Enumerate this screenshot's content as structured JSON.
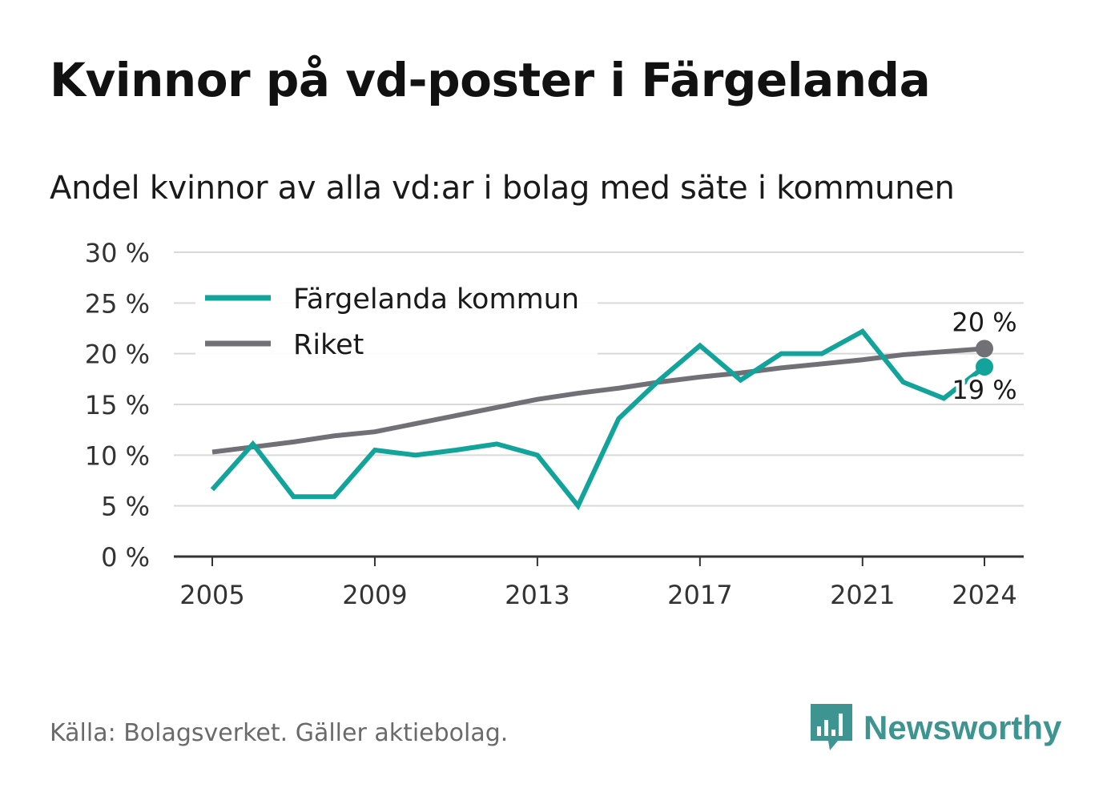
{
  "header": {
    "title": "Kvinnor på vd-poster i Färgelanda",
    "subtitle": "Andel kvinnor av alla vd:ar i bolag med säte i kommunen"
  },
  "footer": {
    "source": "Källa: Bolagsverket. Gäller aktiebolag.",
    "brand": "Newsworthy",
    "brand_icon": "bar-chart-speech-bubble-icon"
  },
  "colors": {
    "kommun": "#12a39a",
    "riket": "#727077",
    "grid": "#d9d9d9",
    "axis": "#333333",
    "brand": "#3d9490"
  },
  "chart_data": {
    "type": "line",
    "x": [
      2005,
      2006,
      2007,
      2008,
      2009,
      2010,
      2011,
      2012,
      2013,
      2014,
      2015,
      2016,
      2017,
      2018,
      2019,
      2020,
      2021,
      2022,
      2023,
      2024
    ],
    "xticks": [
      2005,
      2009,
      2013,
      2017,
      2021,
      2024
    ],
    "xtick_labels": [
      "2005",
      "2009",
      "2013",
      "2017",
      "2021",
      "2024"
    ],
    "yticks": [
      0,
      5,
      10,
      15,
      20,
      25,
      30
    ],
    "ytick_labels": [
      "0 %",
      "5 %",
      "10 %",
      "15 %",
      "20 %",
      "25 %",
      "30 %"
    ],
    "ylim": [
      0,
      30
    ],
    "grid": true,
    "legend_position": "top-left",
    "series": [
      {
        "name": "Färgelanda kommun",
        "values": [
          6.6,
          11.1,
          5.9,
          5.9,
          10.5,
          10.0,
          10.5,
          11.1,
          10.0,
          5.0,
          13.6,
          17.4,
          20.8,
          17.4,
          20.0,
          20.0,
          22.2,
          17.2,
          15.6,
          18.7
        ],
        "end_label": "19 %"
      },
      {
        "name": "Riket",
        "values": [
          10.3,
          10.8,
          11.3,
          11.9,
          12.3,
          13.1,
          13.9,
          14.7,
          15.5,
          16.1,
          16.6,
          17.2,
          17.7,
          18.1,
          18.6,
          19.0,
          19.4,
          19.9,
          20.2,
          20.5
        ],
        "end_label": "20 %"
      }
    ]
  }
}
